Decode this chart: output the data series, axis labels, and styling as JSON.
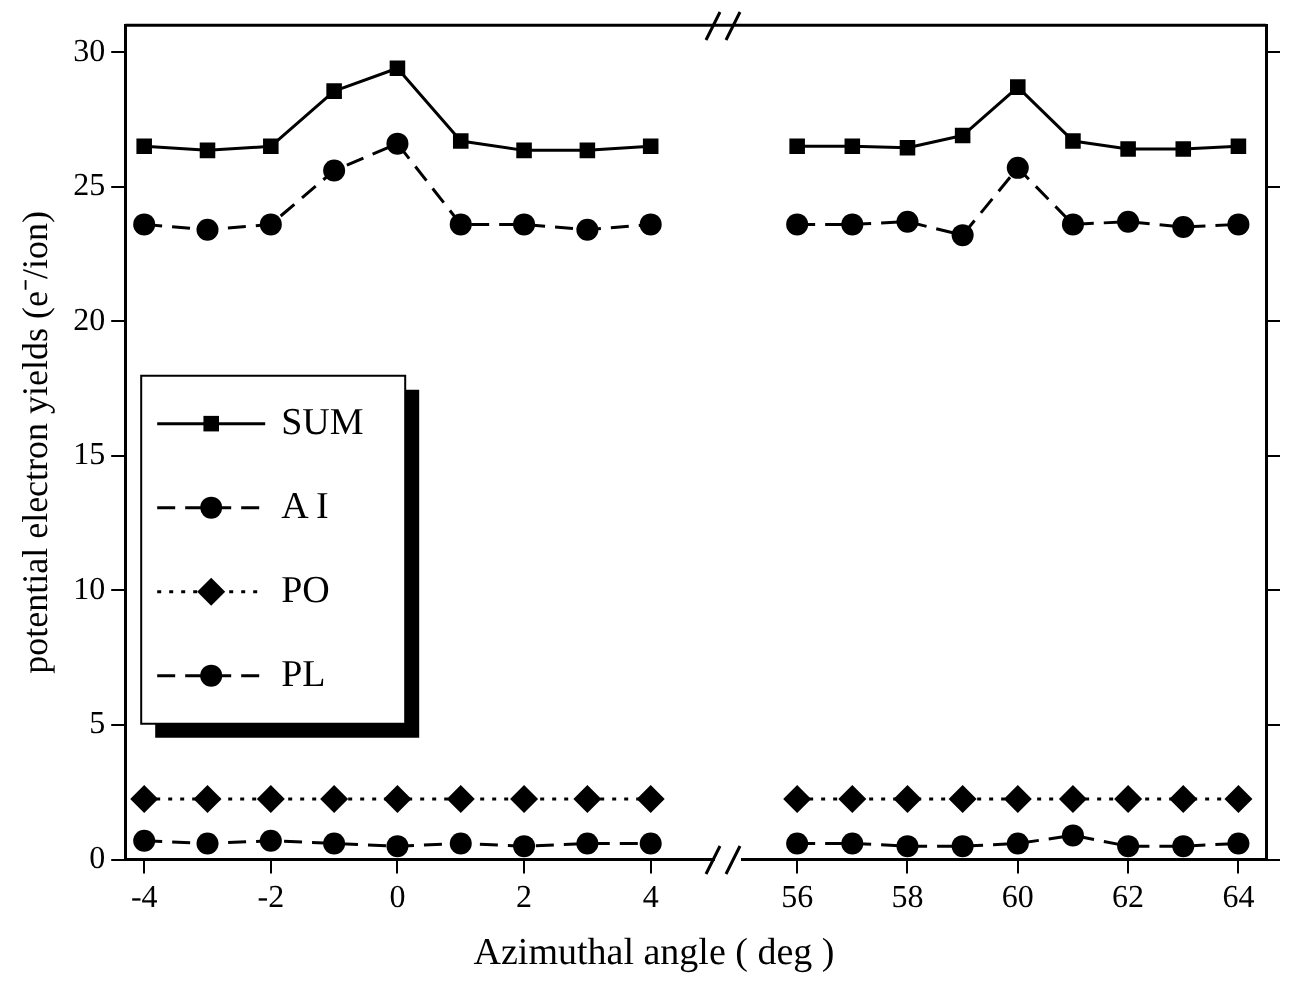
{
  "chart_data": [
    {
      "type": "line",
      "ylabel": "potential electron yields (e⁻/ion)",
      "xlabel": "Azimuthal angle ( deg )",
      "x": [
        -4,
        -3,
        -2,
        -1,
        0,
        1,
        2,
        3,
        4
      ],
      "xlim": [
        -4.3,
        5
      ],
      "xticks": [
        -4,
        -2,
        0,
        2,
        4
      ],
      "ylim": [
        0,
        31
      ],
      "yticks": [
        0,
        5,
        10,
        15,
        20,
        25,
        30
      ],
      "legend": "left",
      "grid": false,
      "tick_labels": true,
      "series": [
        {
          "name": "SUM",
          "color": "#000000",
          "marker": "square",
          "line_style": "solid",
          "values": [
            26.5,
            26.35,
            26.5,
            28.55,
            29.4,
            26.7,
            26.35,
            26.35,
            26.5
          ]
        },
        {
          "name": "A I",
          "color": "#000000",
          "marker": "circle",
          "line_style": "dashed",
          "values": [
            23.6,
            23.4,
            23.6,
            25.6,
            26.6,
            23.6,
            23.6,
            23.4,
            23.6
          ]
        },
        {
          "name": "PO",
          "color": "#000000",
          "marker": "diamond",
          "line_style": "dotted",
          "values": [
            2.25,
            2.25,
            2.25,
            2.25,
            2.25,
            2.25,
            2.25,
            2.25,
            2.25
          ]
        },
        {
          "name": "PL",
          "color": "#000000",
          "marker": "circle",
          "line_style": "dashed",
          "values": [
            0.7,
            0.6,
            0.7,
            0.6,
            0.5,
            0.6,
            0.5,
            0.6,
            0.6
          ]
        }
      ]
    },
    {
      "type": "line",
      "x": [
        56,
        57,
        58,
        59,
        60,
        61,
        62,
        63,
        64
      ],
      "xlim": [
        55,
        64.5
      ],
      "xticks": [
        56,
        58,
        60,
        62,
        64
      ],
      "ylim": [
        0,
        31
      ],
      "yticks": [
        0,
        5,
        10,
        15,
        20,
        25,
        30
      ],
      "grid": false,
      "tick_labels": "x",
      "series": [
        {
          "color": "#000000",
          "marker": "square",
          "line_style": "solid",
          "values": [
            26.5,
            26.5,
            26.45,
            26.9,
            28.7,
            26.7,
            26.4,
            26.4,
            26.5
          ]
        },
        {
          "color": "#000000",
          "marker": "circle",
          "line_style": "dashed",
          "values": [
            23.6,
            23.6,
            23.7,
            23.2,
            25.7,
            23.6,
            23.7,
            23.5,
            23.6
          ]
        },
        {
          "color": "#000000",
          "marker": "diamond",
          "line_style": "dotted",
          "values": [
            2.25,
            2.25,
            2.25,
            2.25,
            2.25,
            2.25,
            2.25,
            2.25,
            2.25
          ]
        },
        {
          "color": "#000000",
          "marker": "circle",
          "line_style": "dashed",
          "values": [
            0.6,
            0.6,
            0.5,
            0.5,
            0.6,
            0.9,
            0.5,
            0.5,
            0.6
          ]
        }
      ]
    }
  ]
}
